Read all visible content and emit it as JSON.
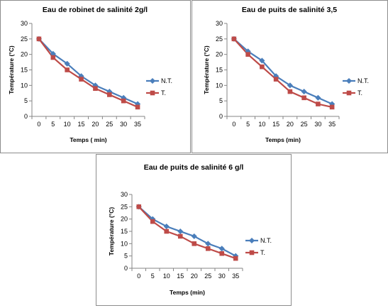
{
  "chart_data": [
    {
      "type": "line",
      "title": "Eau de robinet de salinité 2g/l",
      "xlabel": "Temps ( min)",
      "ylabel": "Température (°C)",
      "x": [
        0,
        5,
        10,
        15,
        20,
        25,
        30,
        35
      ],
      "ylim": [
        0,
        30
      ],
      "yticks": [
        0,
        5,
        10,
        15,
        20,
        25,
        30
      ],
      "grid": false,
      "legend": "right",
      "series": [
        {
          "name": "N.T.",
          "color": "#4a7ebb",
          "marker": "diamond",
          "values": [
            25,
            20.2,
            17,
            13,
            10,
            8,
            6,
            4
          ]
        },
        {
          "name": "T.",
          "color": "#be4b48",
          "marker": "square",
          "values": [
            25,
            19,
            15,
            12,
            9,
            7,
            5,
            3
          ]
        }
      ]
    },
    {
      "type": "line",
      "title": "Eau de puits de salinité 3,5",
      "xlabel": "Temps (min)",
      "ylabel": "Température (°C)",
      "x": [
        0,
        5,
        10,
        15,
        20,
        25,
        30,
        35
      ],
      "ylim": [
        0,
        30
      ],
      "yticks": [
        0,
        5,
        10,
        15,
        20,
        25,
        30
      ],
      "grid": false,
      "legend": "right",
      "series": [
        {
          "name": "N.T.",
          "color": "#4a7ebb",
          "marker": "diamond",
          "values": [
            25,
            21,
            18,
            13,
            10,
            8,
            6,
            4
          ]
        },
        {
          "name": "T.",
          "color": "#be4b48",
          "marker": "square",
          "values": [
            25,
            20,
            16,
            12,
            8,
            6,
            4,
            3
          ]
        }
      ]
    },
    {
      "type": "line",
      "title": "Eau de puits de salinité 6 g/l",
      "xlabel": "Temps (min)",
      "ylabel": "Température (°C)",
      "x": [
        0,
        5,
        10,
        15,
        20,
        25,
        30,
        35
      ],
      "ylim": [
        0,
        30
      ],
      "yticks": [
        0,
        5,
        10,
        15,
        20,
        25,
        30
      ],
      "grid": false,
      "legend": "right",
      "series": [
        {
          "name": "N.T.",
          "color": "#4a7ebb",
          "marker": "diamond",
          "values": [
            25,
            20,
            17,
            15,
            13,
            10,
            8,
            5
          ]
        },
        {
          "name": "T.",
          "color": "#be4b48",
          "marker": "square",
          "values": [
            25,
            19,
            15,
            13,
            10,
            8,
            6,
            4
          ]
        }
      ]
    }
  ]
}
